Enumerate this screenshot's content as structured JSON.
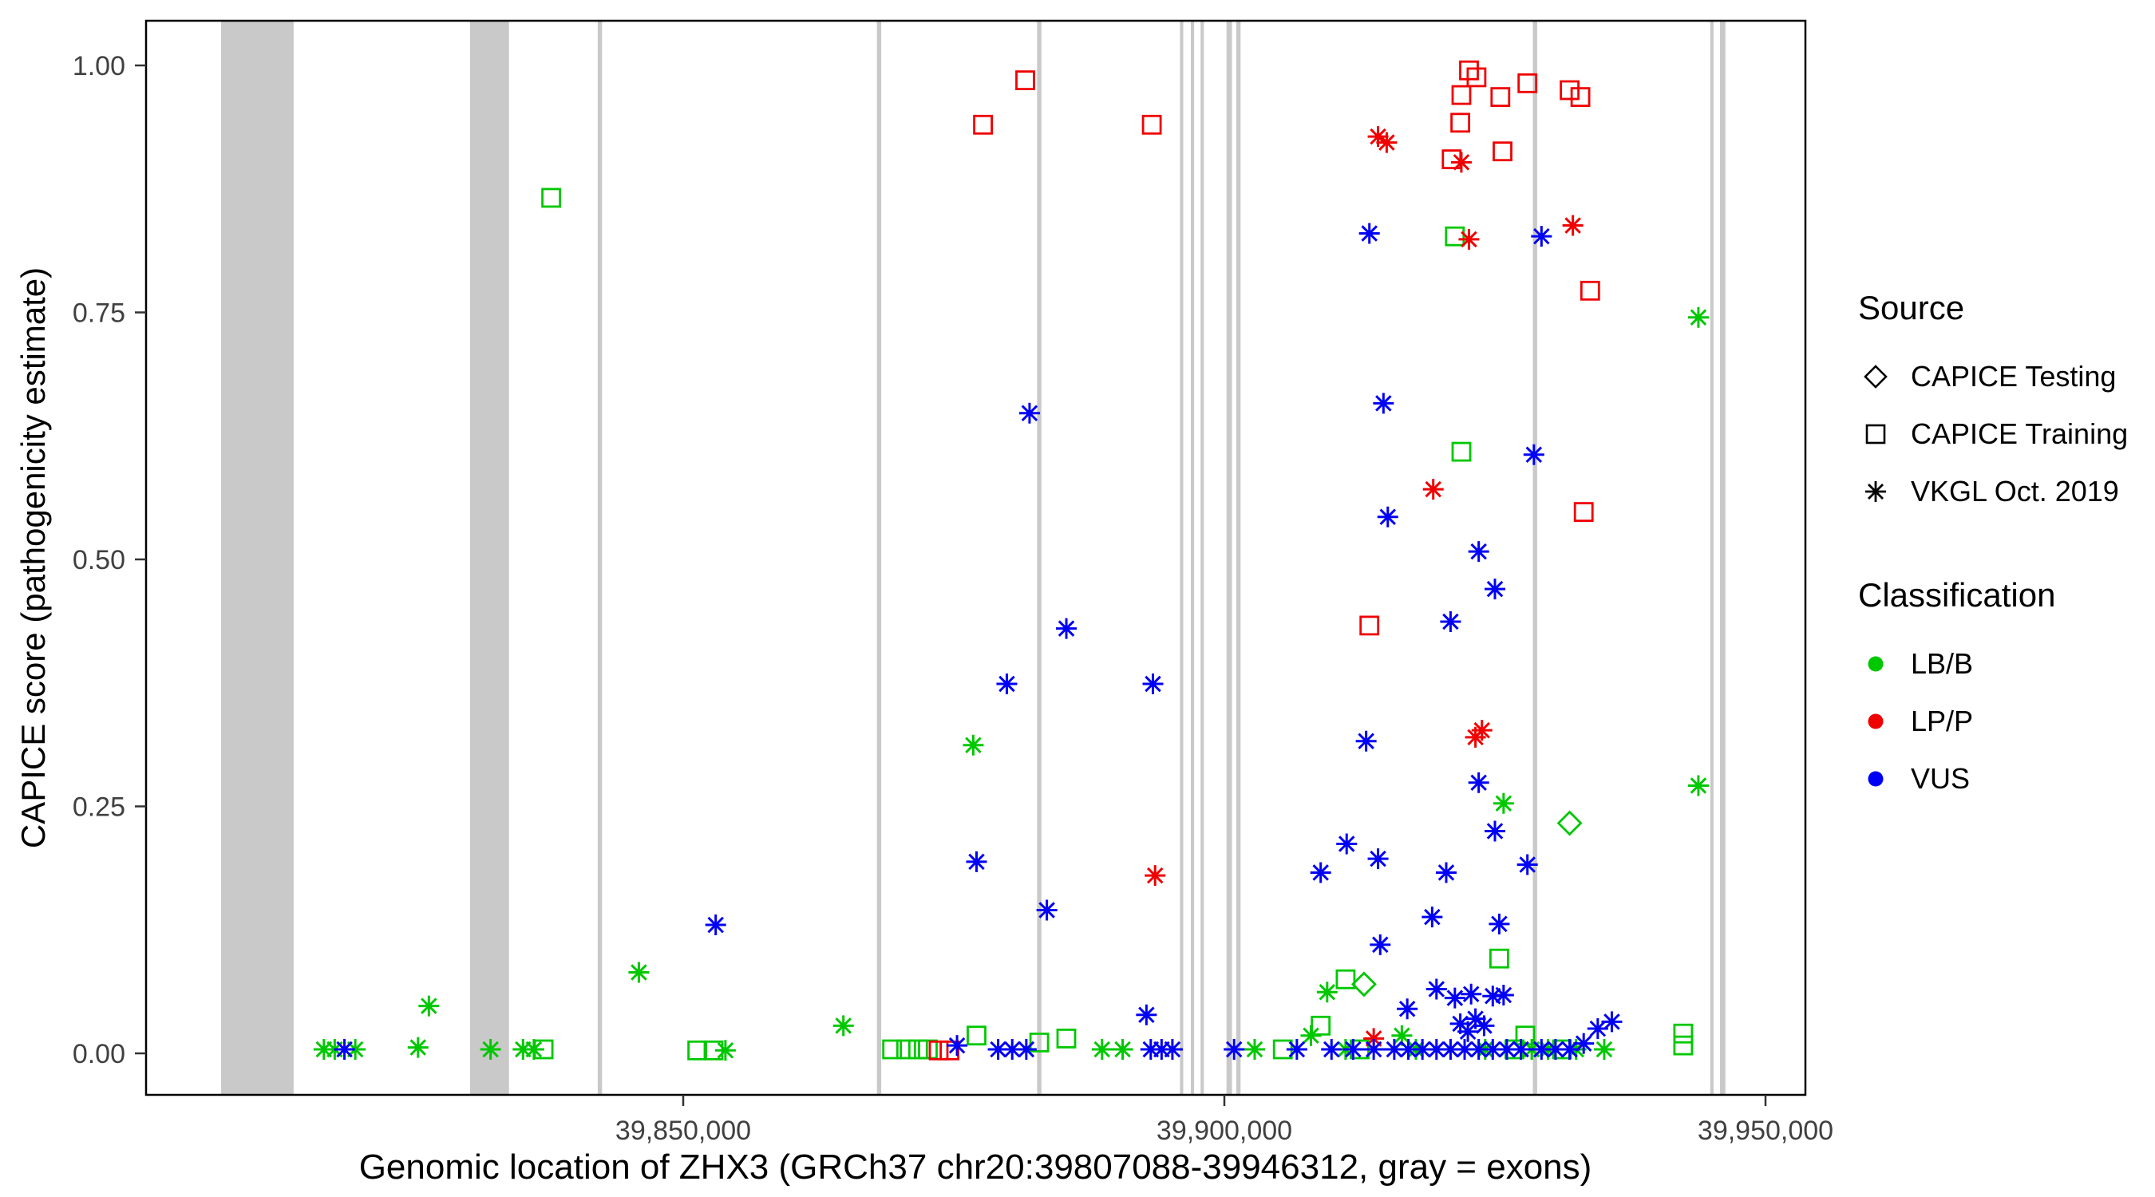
{
  "figure": {
    "x_axis": {
      "title": "Genomic location of ZHX3 (GRCh37 chr20:39807088-39946312, gray = exons)",
      "ticks": [
        "39,850,000",
        "39,900,000",
        "39,950,000"
      ],
      "tick_values": [
        39850000,
        39900000,
        39950000
      ]
    },
    "y_axis": {
      "title": "CAPICE score (pathogenicity estimate)",
      "ticks": [
        "0.00",
        "0.25",
        "0.50",
        "0.75",
        "1.00"
      ],
      "tick_values": [
        0,
        0.25,
        0.5,
        0.75,
        1.0
      ]
    },
    "legend": {
      "source": {
        "title": "Source",
        "items": [
          {
            "label": "CAPICE Testing",
            "shape": "diamond"
          },
          {
            "label": "CAPICE Training",
            "shape": "square"
          },
          {
            "label": "VKGL Oct. 2019",
            "shape": "asterisk"
          }
        ]
      },
      "classification": {
        "title": "Classification",
        "items": [
          {
            "label": "LB/B",
            "color": "#00C800"
          },
          {
            "label": "LP/P",
            "color": "#F00000"
          },
          {
            "label": "VUS",
            "color": "#0000F5"
          }
        ]
      }
    },
    "colors": {
      "LB/B": "#00C800",
      "LP/P": "#F00000",
      "VUS": "#0000F5",
      "exon": "#C9C9C9"
    }
  },
  "chart_data": {
    "type": "scatter",
    "title": "",
    "xlabel": "Genomic location of ZHX3 (GRCh37 chr20:39807088-39946312, gray = exons)",
    "ylabel": "CAPICE score (pathogenicity estimate)",
    "xlim": [
      39800400,
      39953700
    ],
    "ylim": [
      -0.04,
      1.045
    ],
    "grid": false,
    "legend_position": "right",
    "exons": [
      [
        39807300,
        39814000
      ],
      [
        39830300,
        39833900
      ],
      [
        39842100,
        39842500
      ],
      [
        39867900,
        39868300
      ],
      [
        39882700,
        39883100
      ],
      [
        39895900,
        39896200
      ],
      [
        39896900,
        39897200
      ],
      [
        39897800,
        39898100
      ],
      [
        39900200,
        39900700
      ],
      [
        39901100,
        39901500
      ],
      [
        39928500,
        39928900
      ],
      [
        39944900,
        39945200
      ],
      [
        39945800,
        39946300
      ]
    ],
    "columns": [
      "genomic_position",
      "capice_score",
      "classification",
      "source"
    ],
    "points": [
      [
        39816800,
        0.004,
        "LB/B",
        "vkgl"
      ],
      [
        39817800,
        0.004,
        "LB/B",
        "vkgl"
      ],
      [
        39819700,
        0.004,
        "LB/B",
        "vkgl"
      ],
      [
        39825500,
        0.006,
        "LB/B",
        "vkgl"
      ],
      [
        39826500,
        0.048,
        "LB/B",
        "vkgl"
      ],
      [
        39832200,
        0.004,
        "LB/B",
        "vkgl"
      ],
      [
        39835200,
        0.004,
        "LB/B",
        "vkgl"
      ],
      [
        39836200,
        0.004,
        "LB/B",
        "vkgl"
      ],
      [
        39845900,
        0.082,
        "LB/B",
        "vkgl"
      ],
      [
        39853900,
        0.003,
        "LB/B",
        "vkgl"
      ],
      [
        39864800,
        0.028,
        "LB/B",
        "vkgl"
      ],
      [
        39876800,
        0.312,
        "LB/B",
        "vkgl"
      ],
      [
        39888700,
        0.004,
        "LB/B",
        "vkgl"
      ],
      [
        39890600,
        0.004,
        "LB/B",
        "vkgl"
      ],
      [
        39902800,
        0.004,
        "LB/B",
        "vkgl"
      ],
      [
        39908000,
        0.018,
        "LB/B",
        "vkgl"
      ],
      [
        39909500,
        0.062,
        "LB/B",
        "vkgl"
      ],
      [
        39911200,
        0.004,
        "LB/B",
        "vkgl"
      ],
      [
        39916400,
        0.018,
        "LB/B",
        "vkgl"
      ],
      [
        39917700,
        0.004,
        "LB/B",
        "vkgl"
      ],
      [
        39924100,
        0.004,
        "LB/B",
        "vkgl"
      ],
      [
        39925800,
        0.253,
        "LB/B",
        "vkgl"
      ],
      [
        39928400,
        0.004,
        "LB/B",
        "vkgl"
      ],
      [
        39929900,
        0.004,
        "LB/B",
        "vkgl"
      ],
      [
        39932500,
        0.004,
        "LB/B",
        "vkgl"
      ],
      [
        39935100,
        0.004,
        "LB/B",
        "vkgl"
      ],
      [
        39943800,
        0.271,
        "LB/B",
        "vkgl"
      ],
      [
        39943800,
        0.745,
        "LB/B",
        "vkgl"
      ],
      [
        39837100,
        0.004,
        "LB/B",
        "training"
      ],
      [
        39837800,
        0.866,
        "LB/B",
        "training"
      ],
      [
        39851300,
        0.003,
        "LB/B",
        "training"
      ],
      [
        39852800,
        0.003,
        "LB/B",
        "training"
      ],
      [
        39869300,
        0.004,
        "LB/B",
        "training"
      ],
      [
        39870600,
        0.004,
        "LB/B",
        "training"
      ],
      [
        39871700,
        0.004,
        "LB/B",
        "training"
      ],
      [
        39872600,
        0.004,
        "LB/B",
        "training"
      ],
      [
        39877100,
        0.018,
        "LB/B",
        "training"
      ],
      [
        39882900,
        0.011,
        "LB/B",
        "training"
      ],
      [
        39885400,
        0.015,
        "LB/B",
        "training"
      ],
      [
        39905400,
        0.004,
        "LB/B",
        "training"
      ],
      [
        39908900,
        0.028,
        "LB/B",
        "training"
      ],
      [
        39911200,
        0.075,
        "LB/B",
        "training"
      ],
      [
        39912500,
        0.004,
        "LB/B",
        "training"
      ],
      [
        39921300,
        0.827,
        "LB/B",
        "training"
      ],
      [
        39921900,
        0.609,
        "LB/B",
        "training"
      ],
      [
        39925400,
        0.096,
        "LB/B",
        "training"
      ],
      [
        39926800,
        0.004,
        "LB/B",
        "training"
      ],
      [
        39927800,
        0.018,
        "LB/B",
        "training"
      ],
      [
        39931200,
        0.004,
        "LB/B",
        "training"
      ],
      [
        39942400,
        0.008,
        "LB/B",
        "training"
      ],
      [
        39942400,
        0.02,
        "LB/B",
        "training"
      ],
      [
        39912900,
        0.07,
        "LB/B",
        "testing"
      ],
      [
        39931900,
        0.233,
        "LB/B",
        "testing"
      ],
      [
        39873600,
        0.003,
        "LP/P",
        "training"
      ],
      [
        39874600,
        0.003,
        "LP/P",
        "training"
      ],
      [
        39877700,
        0.94,
        "LP/P",
        "training"
      ],
      [
        39881600,
        0.985,
        "LP/P",
        "training"
      ],
      [
        39893300,
        0.94,
        "LP/P",
        "training"
      ],
      [
        39913400,
        0.433,
        "LP/P",
        "training"
      ],
      [
        39921000,
        0.905,
        "LP/P",
        "training"
      ],
      [
        39921800,
        0.942,
        "LP/P",
        "training"
      ],
      [
        39921900,
        0.97,
        "LP/P",
        "training"
      ],
      [
        39922600,
        0.995,
        "LP/P",
        "training"
      ],
      [
        39923300,
        0.988,
        "LP/P",
        "training"
      ],
      [
        39925500,
        0.968,
        "LP/P",
        "training"
      ],
      [
        39925700,
        0.913,
        "LP/P",
        "training"
      ],
      [
        39928000,
        0.982,
        "LP/P",
        "training"
      ],
      [
        39931900,
        0.975,
        "LP/P",
        "training"
      ],
      [
        39932900,
        0.968,
        "LP/P",
        "training"
      ],
      [
        39933200,
        0.548,
        "LP/P",
        "training"
      ],
      [
        39933800,
        0.772,
        "LP/P",
        "training"
      ],
      [
        39893600,
        0.18,
        "LP/P",
        "vkgl"
      ],
      [
        39913800,
        0.015,
        "LP/P",
        "vkgl"
      ],
      [
        39914200,
        0.928,
        "LP/P",
        "vkgl"
      ],
      [
        39915000,
        0.922,
        "LP/P",
        "vkgl"
      ],
      [
        39919300,
        0.571,
        "LP/P",
        "vkgl"
      ],
      [
        39921900,
        0.902,
        "LP/P",
        "vkgl"
      ],
      [
        39922600,
        0.824,
        "LP/P",
        "vkgl"
      ],
      [
        39923200,
        0.32,
        "LP/P",
        "vkgl"
      ],
      [
        39923800,
        0.327,
        "LP/P",
        "vkgl"
      ],
      [
        39932200,
        0.838,
        "LP/P",
        "vkgl"
      ],
      [
        39818700,
        0.004,
        "VUS",
        "vkgl"
      ],
      [
        39853000,
        0.13,
        "VUS",
        "vkgl"
      ],
      [
        39875300,
        0.008,
        "VUS",
        "vkgl"
      ],
      [
        39877100,
        0.194,
        "VUS",
        "vkgl"
      ],
      [
        39879100,
        0.004,
        "VUS",
        "vkgl"
      ],
      [
        39879900,
        0.374,
        "VUS",
        "vkgl"
      ],
      [
        39880400,
        0.004,
        "VUS",
        "vkgl"
      ],
      [
        39881700,
        0.004,
        "VUS",
        "vkgl"
      ],
      [
        39882000,
        0.648,
        "VUS",
        "vkgl"
      ],
      [
        39883600,
        0.145,
        "VUS",
        "vkgl"
      ],
      [
        39885400,
        0.43,
        "VUS",
        "vkgl"
      ],
      [
        39892800,
        0.039,
        "VUS",
        "vkgl"
      ],
      [
        39893200,
        0.004,
        "VUS",
        "vkgl"
      ],
      [
        39893400,
        0.374,
        "VUS",
        "vkgl"
      ],
      [
        39894200,
        0.004,
        "VUS",
        "vkgl"
      ],
      [
        39895200,
        0.004,
        "VUS",
        "vkgl"
      ],
      [
        39900900,
        0.004,
        "VUS",
        "vkgl"
      ],
      [
        39906700,
        0.004,
        "VUS",
        "vkgl"
      ],
      [
        39908900,
        0.183,
        "VUS",
        "vkgl"
      ],
      [
        39909900,
        0.004,
        "VUS",
        "vkgl"
      ],
      [
        39911300,
        0.212,
        "VUS",
        "vkgl"
      ],
      [
        39911900,
        0.004,
        "VUS",
        "vkgl"
      ],
      [
        39913100,
        0.316,
        "VUS",
        "vkgl"
      ],
      [
        39913400,
        0.83,
        "VUS",
        "vkgl"
      ],
      [
        39913800,
        0.004,
        "VUS",
        "vkgl"
      ],
      [
        39914200,
        0.197,
        "VUS",
        "vkgl"
      ],
      [
        39914400,
        0.11,
        "VUS",
        "vkgl"
      ],
      [
        39914700,
        0.658,
        "VUS",
        "vkgl"
      ],
      [
        39915100,
        0.543,
        "VUS",
        "vkgl"
      ],
      [
        39915700,
        0.004,
        "VUS",
        "vkgl"
      ],
      [
        39916900,
        0.045,
        "VUS",
        "vkgl"
      ],
      [
        39917000,
        0.004,
        "VUS",
        "vkgl"
      ],
      [
        39918300,
        0.004,
        "VUS",
        "vkgl"
      ],
      [
        39919200,
        0.138,
        "VUS",
        "vkgl"
      ],
      [
        39919600,
        0.065,
        "VUS",
        "vkgl"
      ],
      [
        39919600,
        0.004,
        "VUS",
        "vkgl"
      ],
      [
        39920500,
        0.183,
        "VUS",
        "vkgl"
      ],
      [
        39920900,
        0.437,
        "VUS",
        "vkgl"
      ],
      [
        39920900,
        0.004,
        "VUS",
        "vkgl"
      ],
      [
        39921300,
        0.056,
        "VUS",
        "vkgl"
      ],
      [
        39921800,
        0.03,
        "VUS",
        "vkgl"
      ],
      [
        39922200,
        0.004,
        "VUS",
        "vkgl"
      ],
      [
        39922500,
        0.022,
        "VUS",
        "vkgl"
      ],
      [
        39922800,
        0.06,
        "VUS",
        "vkgl"
      ],
      [
        39923200,
        0.035,
        "VUS",
        "vkgl"
      ],
      [
        39923500,
        0.508,
        "VUS",
        "vkgl"
      ],
      [
        39923500,
        0.274,
        "VUS",
        "vkgl"
      ],
      [
        39923500,
        0.004,
        "VUS",
        "vkgl"
      ],
      [
        39924000,
        0.028,
        "VUS",
        "vkgl"
      ],
      [
        39924800,
        0.058,
        "VUS",
        "vkgl"
      ],
      [
        39924800,
        0.004,
        "VUS",
        "vkgl"
      ],
      [
        39925000,
        0.47,
        "VUS",
        "vkgl"
      ],
      [
        39925000,
        0.225,
        "VUS",
        "vkgl"
      ],
      [
        39925400,
        0.131,
        "VUS",
        "vkgl"
      ],
      [
        39925800,
        0.059,
        "VUS",
        "vkgl"
      ],
      [
        39926100,
        0.004,
        "VUS",
        "vkgl"
      ],
      [
        39927400,
        0.004,
        "VUS",
        "vkgl"
      ],
      [
        39928000,
        0.191,
        "VUS",
        "vkgl"
      ],
      [
        39928600,
        0.606,
        "VUS",
        "vkgl"
      ],
      [
        39929300,
        0.827,
        "VUS",
        "vkgl"
      ],
      [
        39929300,
        0.004,
        "VUS",
        "vkgl"
      ],
      [
        39930600,
        0.004,
        "VUS",
        "vkgl"
      ],
      [
        39931900,
        0.004,
        "VUS",
        "vkgl"
      ],
      [
        39933200,
        0.01,
        "VUS",
        "vkgl"
      ],
      [
        39934500,
        0.025,
        "VUS",
        "vkgl"
      ],
      [
        39935800,
        0.032,
        "VUS",
        "vkgl"
      ]
    ]
  }
}
